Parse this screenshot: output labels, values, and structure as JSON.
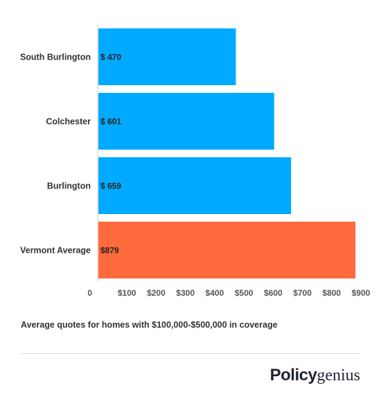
{
  "chart_data": {
    "type": "bar",
    "orientation": "horizontal",
    "categories": [
      "South Burlington",
      "Colchester",
      "Burlington",
      "Vermont Average"
    ],
    "values": [
      470,
      601,
      659,
      879
    ],
    "data_labels": [
      "$ 470",
      "$ 601",
      "$ 659",
      "$879"
    ],
    "bar_colors": [
      "#00aaff",
      "#00aaff",
      "#00aaff",
      "#ff6a3d"
    ],
    "xlim": [
      0,
      900
    ],
    "x_ticks": [
      0,
      100,
      200,
      300,
      400,
      500,
      600,
      700,
      800,
      900
    ],
    "x_tick_labels": [
      "0",
      "$100",
      "$200",
      "$300",
      "$400",
      "$500",
      "$600",
      "$700",
      "$800",
      "$900"
    ],
    "grid": false
  },
  "caption": "Average quotes for homes with $100,000-$500,000 in coverage",
  "logo": {
    "bold": "Policy",
    "light": "genius"
  }
}
